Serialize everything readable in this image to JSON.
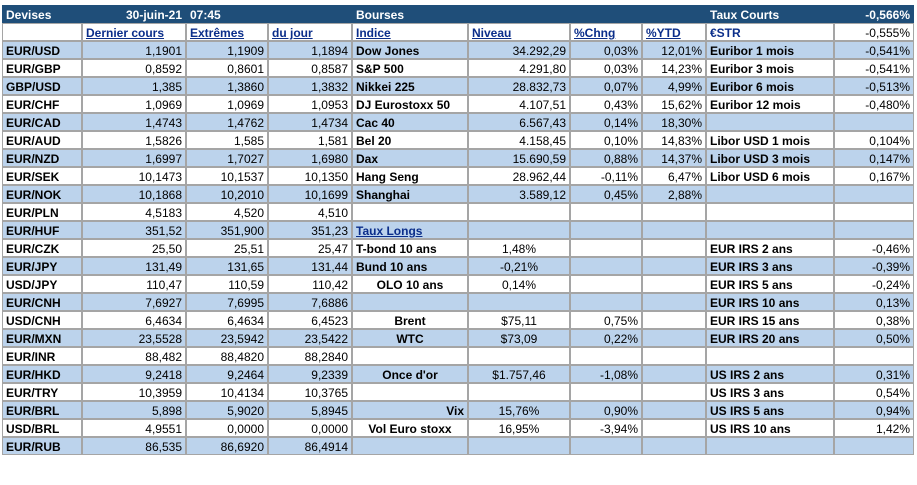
{
  "header": {
    "devises": "Devises",
    "date": "30-juin-21",
    "time": "07:45",
    "bourses": "Bourses",
    "taux_courts": "Taux Courts",
    "estr_value": "-0,566%"
  },
  "subheader": {
    "dernier_cours": "Dernier cours",
    "extremes": "Extrêmes",
    "du_jour": "du jour",
    "indice": "Indice",
    "niveau": "Niveau",
    "chng": "%Chng",
    "ytd": "%YTD",
    "estr": "€STR",
    "estr_value": "-0,555%"
  },
  "rows": [
    {
      "c0": "EUR/USD",
      "c1": "1,1901",
      "c2": "1,1909",
      "c3": "1,1894",
      "c4": "Dow Jones",
      "c5": "34.292,29",
      "c6": "0,03%",
      "c7": "12,01%",
      "c8": "Euribor 1 mois",
      "c9": "-0,541%"
    },
    {
      "c0": "EUR/GBP",
      "c1": "0,8592",
      "c2": "0,8601",
      "c3": "0,8587",
      "c4": "S&P 500",
      "c5": "4.291,80",
      "c6": "0,03%",
      "c7": "14,23%",
      "c8": "Euribor 3 mois",
      "c9": "-0,541%"
    },
    {
      "c0": "GBP/USD",
      "c1": "1,385",
      "c2": "1,3860",
      "c3": "1,3832",
      "c4": "Nikkei 225",
      "c5": "28.832,73",
      "c6": "0,07%",
      "c7": "4,99%",
      "c8": "Euribor 6 mois",
      "c9": "-0,513%"
    },
    {
      "c0": "EUR/CHF",
      "c1": "1,0969",
      "c2": "1,0969",
      "c3": "1,0953",
      "c4": "DJ Eurostoxx 50",
      "c5": "4.107,51",
      "c6": "0,43%",
      "c7": "15,62%",
      "c8": "Euribor 12 mois",
      "c9": "-0,480%"
    },
    {
      "c0": "EUR/CAD",
      "c1": "1,4743",
      "c2": "1,4762",
      "c3": "1,4734",
      "c4": "Cac 40",
      "c5": "6.567,43",
      "c6": "0,14%",
      "c7": "18,30%",
      "c8": "",
      "c9": ""
    },
    {
      "c0": "EUR/AUD",
      "c1": "1,5826",
      "c2": "1,585",
      "c3": "1,581",
      "c4": "Bel 20",
      "c5": "4.158,45",
      "c6": "0,10%",
      "c7": "14,83%",
      "c8": "Libor USD 1 mois",
      "c9": "0,104%"
    },
    {
      "c0": "EUR/NZD",
      "c1": "1,6997",
      "c2": "1,7027",
      "c3": "1,6980",
      "c4": "Dax",
      "c5": "15.690,59",
      "c6": "0,88%",
      "c7": "14,37%",
      "c8": "Libor USD 3 mois",
      "c9": "0,147%"
    },
    {
      "c0": "EUR/SEK",
      "c1": "10,1473",
      "c2": "10,1537",
      "c3": "10,1350",
      "c4": "Hang Seng",
      "c5": "28.962,44",
      "c6": "-0,11%",
      "c7": "6,47%",
      "c8": "Libor USD 6 mois",
      "c9": "0,167%"
    },
    {
      "c0": "EUR/NOK",
      "c1": "10,1868",
      "c2": "10,2010",
      "c3": "10,1699",
      "c4": "Shanghai",
      "c5": "3.589,12",
      "c6": "0,45%",
      "c7": "2,88%",
      "c8": "",
      "c9": ""
    },
    {
      "c0": "EUR/PLN",
      "c1": "4,5183",
      "c2": "4,520",
      "c3": "4,510",
      "c4": "",
      "c5": "",
      "c6": "",
      "c7": "",
      "c8": "",
      "c9": ""
    },
    {
      "c0": "EUR/HUF",
      "c1": "351,52",
      "c2": "351,900",
      "c3": "351,23",
      "c4": "Taux Longs",
      "c5": "",
      "c6": "",
      "c7": "",
      "c8": "",
      "c9": ""
    },
    {
      "c0": "EUR/CZK",
      "c1": "25,50",
      "c2": "25,51",
      "c3": "25,47",
      "c4": "T-bond 10 ans",
      "c5": "1,48%",
      "c6": "",
      "c7": "",
      "c8": "EUR IRS 2 ans",
      "c9": "-0,46%"
    },
    {
      "c0": "EUR/JPY",
      "c1": "131,49",
      "c2": "131,65",
      "c3": "131,44",
      "c4": "Bund 10 ans",
      "c5": "-0,21%",
      "c6": "",
      "c7": "",
      "c8": "EUR IRS 3 ans",
      "c9": "-0,39%"
    },
    {
      "c0": "USD/JPY",
      "c1": "110,47",
      "c2": "110,59",
      "c3": "110,42",
      "c4": "OLO 10 ans",
      "c5": "0,14%",
      "c6": "",
      "c7": "",
      "c8": "EUR IRS 5 ans",
      "c9": "-0,24%"
    },
    {
      "c0": "EUR/CNH",
      "c1": "7,6927",
      "c2": "7,6995",
      "c3": "7,6886",
      "c4": "",
      "c5": "",
      "c6": "",
      "c7": "",
      "c8": "EUR IRS 10 ans",
      "c9": "0,13%"
    },
    {
      "c0": "USD/CNH",
      "c1": "6,4634",
      "c2": "6,4634",
      "c3": "6,4523",
      "c4": "Brent",
      "c5": "$75,11",
      "c6": "0,75%",
      "c7": "",
      "c8": "EUR IRS 15 ans",
      "c9": "0,38%"
    },
    {
      "c0": "EUR/MXN",
      "c1": "23,5528",
      "c2": "23,5942",
      "c3": "23,5422",
      "c4": "WTC",
      "c5": "$73,09",
      "c6": "0,22%",
      "c7": "",
      "c8": "EUR IRS 20 ans",
      "c9": "0,50%"
    },
    {
      "c0": "EUR/INR",
      "c1": "88,482",
      "c2": "88,4820",
      "c3": "88,2840",
      "c4": "",
      "c5": "",
      "c6": "",
      "c7": "",
      "c8": "",
      "c9": ""
    },
    {
      "c0": "EUR/HKD",
      "c1": "9,2418",
      "c2": "9,2464",
      "c3": "9,2339",
      "c4": "Once d'or",
      "c5": "$1.757,46",
      "c6": "-1,08%",
      "c7": "",
      "c8": "US IRS 2 ans",
      "c9": "0,31%"
    },
    {
      "c0": "EUR/TRY",
      "c1": "10,3959",
      "c2": "10,4134",
      "c3": "10,3765",
      "c4": "",
      "c5": "",
      "c6": "",
      "c7": "",
      "c8": "US IRS 3 ans",
      "c9": "0,54%"
    },
    {
      "c0": "EUR/BRL",
      "c1": "5,898",
      "c2": "5,9020",
      "c3": "5,8945",
      "c4": "Vix",
      "c5": "15,76%",
      "c6": "0,90%",
      "c7": "",
      "c8": "US IRS 5 ans",
      "c9": "0,94%"
    },
    {
      "c0": "USD/BRL",
      "c1": "4,9551",
      "c2": "0,0000",
      "c3": "0,0000",
      "c4": "Vol Euro stoxx",
      "c5": "16,95%",
      "c6": "-3,94%",
      "c7": "",
      "c8": "US IRS 10 ans",
      "c9": "1,42%"
    },
    {
      "c0": "EUR/RUB",
      "c1": "86,535",
      "c2": "86,6920",
      "c3": "86,4914",
      "c4": "",
      "c5": "",
      "c6": "",
      "c7": "",
      "c8": "",
      "c9": ""
    }
  ]
}
